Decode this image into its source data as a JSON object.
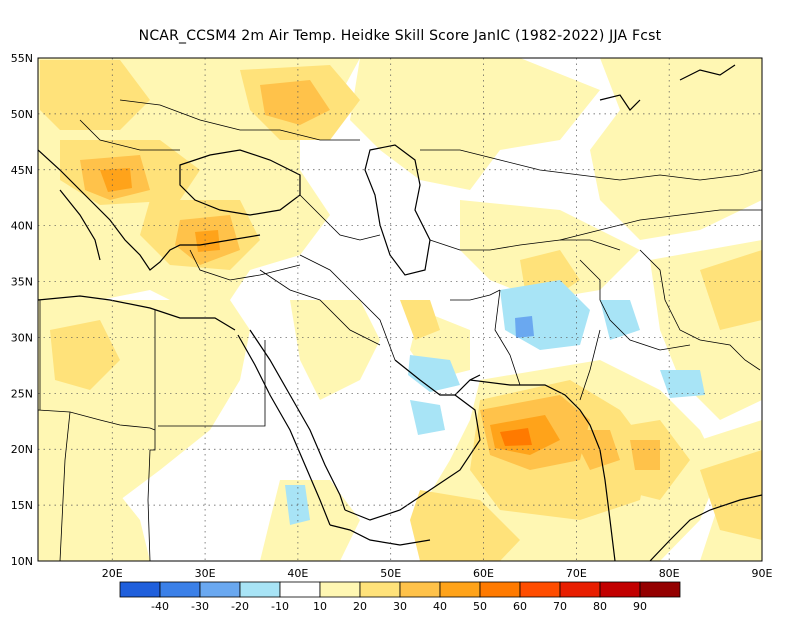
{
  "title": "NCAR_CCSM4  2m Air Temp. Heidke Skill Score JanIC (1982-2022) JJA Fcst",
  "map": {
    "lon_range": [
      12,
      90
    ],
    "lat_range": [
      10,
      55
    ],
    "lat_ticks": [
      "10N",
      "15N",
      "20N",
      "25N",
      "30N",
      "35N",
      "40N",
      "45N",
      "50N",
      "55N"
    ],
    "lon_ticks": [
      "20E",
      "30E",
      "40E",
      "50E",
      "60E",
      "70E",
      "80E",
      "90E"
    ],
    "grid": "dotted"
  },
  "colorbar": {
    "labels": [
      "-40",
      "-30",
      "-20",
      "-10",
      "10",
      "20",
      "30",
      "40",
      "50",
      "60",
      "70",
      "80",
      "90"
    ],
    "colors": [
      "#1f5fdc",
      "#3b80e8",
      "#6aa8f0",
      "#a8e4f6",
      "#ffffff",
      "#fff7b3",
      "#ffe27a",
      "#ffc24a",
      "#ffa31a",
      "#ff7a00",
      "#ff4d00",
      "#e81e00",
      "#c20000",
      "#940000"
    ]
  },
  "skill_colors": {
    "s10": "#fff7b3",
    "s20": "#ffe27a",
    "s30": "#ffc24a",
    "s40": "#ffa31a",
    "s50": "#ff7a00",
    "n10": "#a8e4f6",
    "n20": "#6aa8f0"
  }
}
